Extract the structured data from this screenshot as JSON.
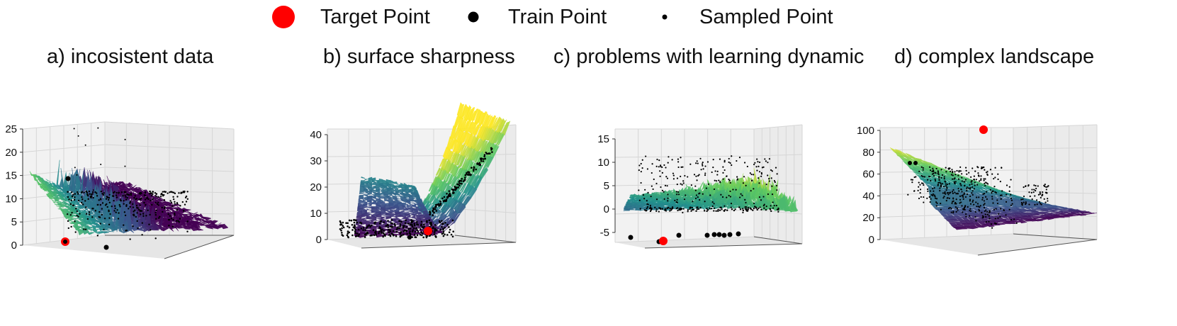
{
  "legend": {
    "target_label": "Target Point",
    "train_label": "Train Point",
    "sampled_label": "Sampled Point"
  },
  "colors": {
    "target": "#ff0000",
    "train": "#000000",
    "sampled": "#000000",
    "colormap": "viridis"
  },
  "chart_data": [
    {
      "type": "surface3d",
      "title": "a) incosistent data",
      "zticks": [
        "0",
        "5",
        "10",
        "15",
        "20",
        "25"
      ],
      "zlim": [
        0,
        25
      ],
      "features": "noisy spiky surface with sampled points concentrated along the valley"
    },
    {
      "type": "surface3d",
      "title": "b) surface sharpness",
      "zticks": [
        "0",
        "10",
        "20",
        "30",
        "40"
      ],
      "zlim": [
        0,
        40
      ],
      "features": "sharp steep ridge rising toward one corner"
    },
    {
      "type": "surface3d",
      "title": "c) problems with learning dynamic",
      "zticks": [
        "-5",
        "0",
        "5",
        "10",
        "15"
      ],
      "zlim": [
        -7,
        16
      ],
      "features": "flat spiky plane with train points below the surface"
    },
    {
      "type": "surface3d",
      "title": "d) complex landscape",
      "zticks": [
        "0",
        "20",
        "40",
        "60",
        "80",
        "100"
      ],
      "zlim": [
        0,
        100
      ],
      "features": "smooth sloping plane with target point above the surface"
    }
  ]
}
